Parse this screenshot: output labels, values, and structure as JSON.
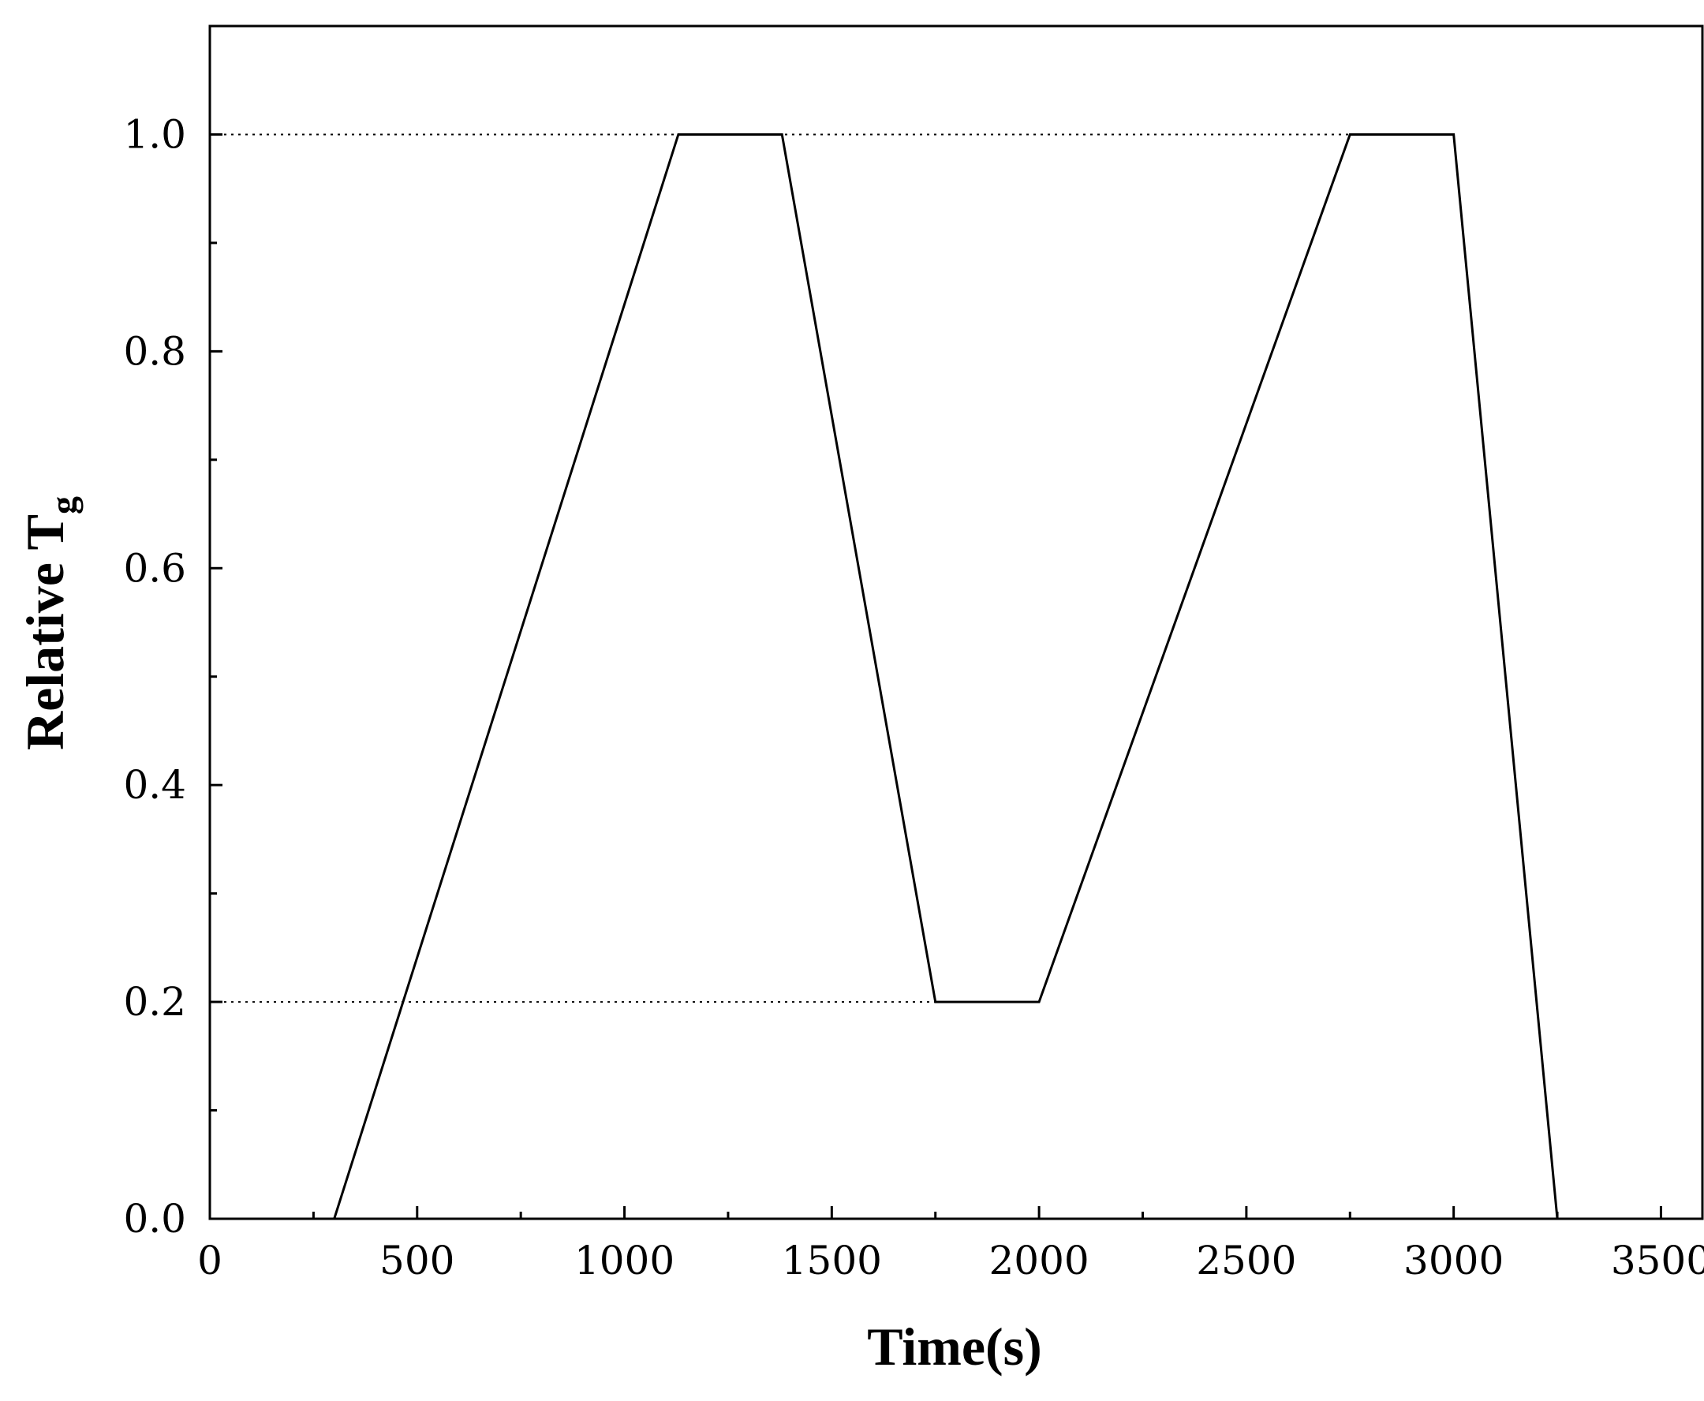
{
  "chart_data": {
    "type": "line",
    "xlabel": "Time(s)",
    "ylabel": {
      "main": "Relative T",
      "subscript": "g"
    },
    "xlim": [
      0,
      3600
    ],
    "ylim": [
      0,
      1.1
    ],
    "x_ticks": [
      0,
      500,
      1000,
      1500,
      2000,
      2500,
      3000,
      3500
    ],
    "x_tick_labels": [
      "0",
      "500",
      "1000",
      "1500",
      "2000",
      "2500",
      "3000",
      "3500"
    ],
    "x_minor_ticks": [
      250,
      750,
      1250,
      1750,
      2250,
      2750,
      3250
    ],
    "y_ticks": [
      0.0,
      0.2,
      0.4,
      0.6,
      0.8,
      1.0
    ],
    "y_tick_labels": [
      "0.0",
      "0.2",
      "0.4",
      "0.6",
      "0.8",
      "1.0"
    ],
    "y_minor_ticks": [
      0.1,
      0.3,
      0.5,
      0.7,
      0.9
    ],
    "grid": false,
    "legend": "none",
    "series": [
      {
        "x": [
          300,
          1130,
          1380,
          1750,
          2000,
          2750,
          3000,
          3250
        ],
        "y": [
          0.0,
          1.0,
          1.0,
          0.2,
          0.2,
          1.0,
          1.0,
          0.0
        ],
        "color": "#000000",
        "style": "solid"
      }
    ],
    "reference_lines": [
      {
        "y": 1.0,
        "x_from": 0,
        "x_to": 2750,
        "style": "dotted"
      },
      {
        "y": 0.2,
        "x_from": 0,
        "x_to": 1750,
        "style": "dotted"
      }
    ]
  }
}
